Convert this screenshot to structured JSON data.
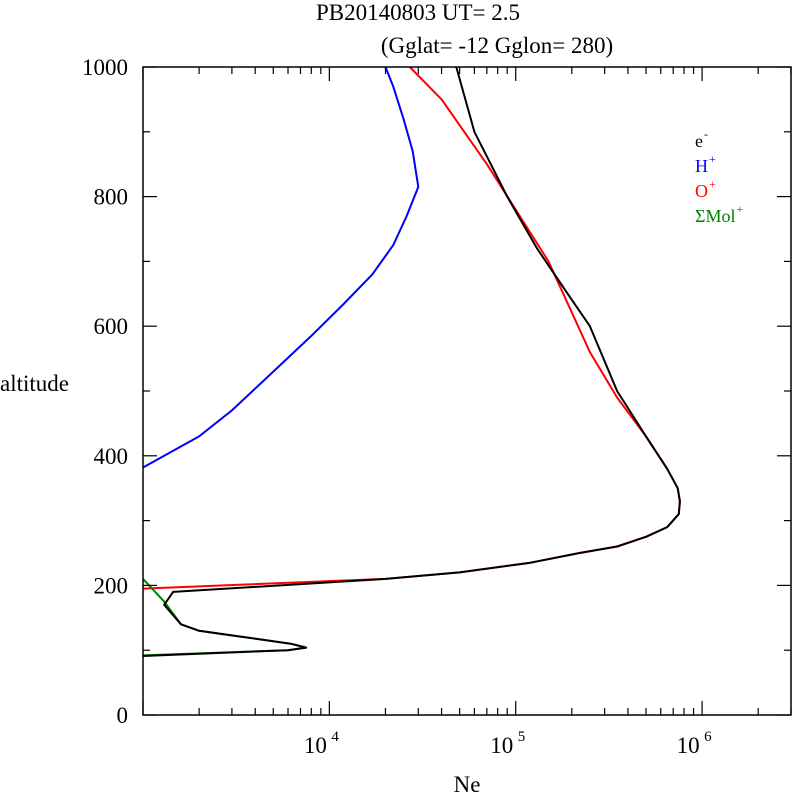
{
  "chart_data": {
    "type": "line",
    "title": "PB20140803   UT=  2.5",
    "subtitle": "(Gglat= -12   Gglon=  280)",
    "xlabel": "Ne",
    "ylabel": "altitude",
    "x_scale": "log",
    "xlim": [
      1000,
      3000000
    ],
    "ylim": [
      0,
      1000
    ],
    "y_ticks": [
      "0",
      "200",
      "400",
      "600",
      "800",
      "1000"
    ],
    "x_ticks": [
      {
        "value": 10000,
        "base": "10",
        "exp": "4"
      },
      {
        "value": 100000,
        "base": "10",
        "exp": "5"
      },
      {
        "value": 1000000,
        "base": "10",
        "exp": "6"
      }
    ],
    "grid": false,
    "legend_position": "top-right",
    "series": [
      {
        "name": "e",
        "name_sup": "-",
        "color": "#000000",
        "points": [
          [
            1000,
            91
          ],
          [
            6000,
            100
          ],
          [
            7500,
            104
          ],
          [
            6200,
            110
          ],
          [
            2000,
            130
          ],
          [
            1600,
            140
          ],
          [
            1300,
            170
          ],
          [
            1450,
            190
          ],
          [
            20000,
            210
          ],
          [
            50000,
            220
          ],
          [
            120000,
            235
          ],
          [
            220000,
            250
          ],
          [
            350000,
            260
          ],
          [
            500000,
            275
          ],
          [
            650000,
            290
          ],
          [
            750000,
            310
          ],
          [
            760000,
            330
          ],
          [
            740000,
            350
          ],
          [
            650000,
            380
          ],
          [
            500000,
            430
          ],
          [
            350000,
            500
          ],
          [
            250000,
            600
          ],
          [
            190000,
            650
          ],
          [
            130000,
            720
          ],
          [
            90000,
            800
          ],
          [
            60000,
            900
          ],
          [
            48000,
            1000
          ]
        ]
      },
      {
        "name": "H",
        "name_sup": "+",
        "color": "#0000ff",
        "points": [
          [
            1000,
            382
          ],
          [
            2000,
            430
          ],
          [
            3000,
            470
          ],
          [
            5000,
            530
          ],
          [
            8000,
            585
          ],
          [
            12000,
            635
          ],
          [
            17000,
            680
          ],
          [
            22000,
            725
          ],
          [
            26000,
            770
          ],
          [
            30000,
            815
          ],
          [
            28000,
            870
          ],
          [
            25000,
            920
          ],
          [
            22000,
            970
          ],
          [
            20000,
            1000
          ]
        ]
      },
      {
        "name": "O",
        "name_sup": "+",
        "color": "#ff0000",
        "points": [
          [
            1000,
            195
          ],
          [
            20000,
            210
          ],
          [
            50000,
            220
          ],
          [
            120000,
            235
          ],
          [
            220000,
            250
          ],
          [
            350000,
            260
          ],
          [
            500000,
            275
          ],
          [
            650000,
            290
          ],
          [
            750000,
            310
          ],
          [
            760000,
            330
          ],
          [
            740000,
            350
          ],
          [
            650000,
            380
          ],
          [
            500000,
            430
          ],
          [
            350000,
            490
          ],
          [
            250000,
            560
          ],
          [
            150000,
            700
          ],
          [
            70000,
            850
          ],
          [
            40000,
            950
          ],
          [
            27000,
            1000
          ]
        ]
      },
      {
        "name": "ΣMol",
        "name_sup": "+",
        "color": "#008000",
        "points": [
          [
            1000,
            210
          ],
          [
            1300,
            175
          ],
          [
            1600,
            140
          ],
          [
            2000,
            130
          ],
          [
            6200,
            110
          ],
          [
            7500,
            104
          ],
          [
            6000,
            100
          ],
          [
            1000,
            92
          ]
        ]
      }
    ]
  }
}
